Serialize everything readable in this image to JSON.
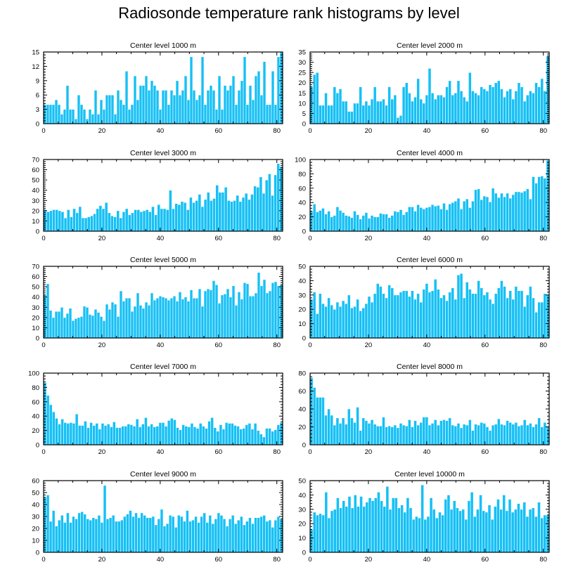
{
  "title": "Radiosonde temperature rank histograms by level",
  "colors": {
    "bar": "#16c0f5",
    "bar_edge": "#ffffff",
    "axis": "#000000"
  },
  "chart_data": [
    {
      "type": "bar",
      "title": "Center level 1000 m",
      "ylim": [
        0,
        15
      ],
      "yticks": [
        0,
        3,
        6,
        9,
        12,
        15
      ],
      "xlim": [
        0,
        82
      ],
      "xticks": [
        0,
        20,
        40,
        60,
        80
      ],
      "values": [
        4,
        4,
        4,
        4,
        5,
        4,
        2,
        3,
        8,
        3,
        3,
        1,
        6,
        4,
        3,
        1,
        3,
        2,
        7,
        2,
        5,
        3,
        6,
        6,
        6,
        2,
        7,
        5,
        4,
        11,
        3,
        4,
        10,
        5,
        8,
        8,
        10,
        7,
        9,
        8,
        7,
        3,
        7,
        7,
        4,
        7,
        6,
        9,
        6,
        7,
        10,
        5,
        14,
        7,
        5,
        6,
        14,
        4,
        7,
        8,
        7,
        3,
        10,
        3,
        8,
        7,
        8,
        10,
        4,
        7,
        9,
        14,
        4,
        8,
        5,
        10,
        11,
        6,
        13,
        4,
        4,
        11,
        4,
        14,
        15
      ]
    },
    {
      "type": "bar",
      "title": "Center level 2000 m",
      "ylim": [
        0,
        35
      ],
      "yticks": [
        0,
        5,
        10,
        15,
        20,
        25,
        30,
        35
      ],
      "xlim": [
        0,
        82
      ],
      "xticks": [
        0,
        20,
        40,
        60,
        80
      ],
      "values": [
        18,
        24,
        25,
        9,
        9,
        15,
        9,
        9,
        18,
        15,
        17,
        11,
        11,
        6,
        6,
        10,
        10,
        18,
        9,
        11,
        9,
        12,
        18,
        11,
        11,
        12,
        9,
        18,
        12,
        14,
        3,
        4,
        18,
        20,
        15,
        11,
        13,
        22,
        12,
        10,
        14,
        27,
        15,
        12,
        14,
        14,
        13,
        18,
        21,
        14,
        15,
        21,
        16,
        13,
        11,
        25,
        16,
        15,
        14,
        18,
        17,
        16,
        19,
        18,
        20,
        21,
        17,
        13,
        16,
        17,
        12,
        16,
        20,
        18,
        11,
        14,
        16,
        15,
        20,
        18,
        22,
        16,
        33
      ]
    },
    {
      "type": "bar",
      "title": "Center level 3000 m",
      "ylim": [
        0,
        70
      ],
      "yticks": [
        0,
        10,
        20,
        30,
        40,
        50,
        60,
        70
      ],
      "xlim": [
        0,
        82
      ],
      "xticks": [
        0,
        20,
        40,
        60,
        80
      ],
      "values": [
        21,
        19,
        20,
        21,
        21,
        20,
        19,
        13,
        21,
        14,
        22,
        18,
        24,
        13,
        13,
        14,
        15,
        17,
        22,
        25,
        22,
        28,
        18,
        15,
        14,
        20,
        13,
        19,
        22,
        16,
        18,
        21,
        21,
        19,
        20,
        21,
        19,
        24,
        16,
        26,
        22,
        22,
        21,
        40,
        22,
        27,
        26,
        29,
        28,
        21,
        33,
        28,
        30,
        36,
        24,
        31,
        38,
        30,
        32,
        45,
        38,
        38,
        43,
        30,
        29,
        30,
        35,
        29,
        33,
        37,
        31,
        36,
        44,
        43,
        53,
        37,
        50,
        56,
        35,
        55,
        66,
        63
      ]
    },
    {
      "type": "bar",
      "title": "Center level 4000 m",
      "ylim": [
        0,
        100
      ],
      "yticks": [
        0,
        20,
        40,
        60,
        80,
        100
      ],
      "xlim": [
        0,
        82
      ],
      "xticks": [
        0,
        20,
        40,
        60,
        80
      ],
      "values": [
        28,
        38,
        27,
        29,
        32,
        24,
        28,
        20,
        22,
        34,
        29,
        26,
        22,
        21,
        19,
        28,
        23,
        17,
        22,
        26,
        18,
        22,
        20,
        20,
        25,
        24,
        24,
        19,
        22,
        28,
        27,
        30,
        23,
        27,
        34,
        34,
        28,
        37,
        33,
        31,
        33,
        34,
        37,
        35,
        36,
        31,
        39,
        30,
        38,
        40,
        42,
        46,
        31,
        42,
        45,
        33,
        42,
        58,
        59,
        44,
        49,
        48,
        41,
        60,
        53,
        47,
        53,
        48,
        53,
        46,
        51,
        55,
        55,
        54,
        56,
        59,
        45,
        76,
        67,
        76,
        77,
        74,
        99
      ]
    },
    {
      "type": "bar",
      "title": "Center level 5000 m",
      "ylim": [
        0,
        70
      ],
      "yticks": [
        0,
        10,
        20,
        30,
        40,
        50,
        60,
        70
      ],
      "xlim": [
        0,
        82
      ],
      "xticks": [
        0,
        20,
        40,
        60,
        80
      ],
      "values": [
        42,
        53,
        27,
        20,
        26,
        26,
        30,
        20,
        24,
        29,
        17,
        19,
        20,
        21,
        31,
        30,
        23,
        22,
        28,
        25,
        21,
        17,
        33,
        28,
        35,
        33,
        21,
        46,
        36,
        39,
        39,
        26,
        31,
        44,
        32,
        29,
        35,
        32,
        44,
        37,
        39,
        41,
        40,
        39,
        37,
        39,
        41,
        36,
        45,
        38,
        40,
        36,
        47,
        39,
        39,
        48,
        31,
        46,
        48,
        47,
        56,
        52,
        34,
        42,
        43,
        48,
        40,
        51,
        32,
        45,
        38,
        54,
        53,
        41,
        41,
        44,
        64,
        51,
        57,
        44,
        46,
        54,
        55,
        51,
        52
      ]
    },
    {
      "type": "bar",
      "title": "Center level 6000 m",
      "ylim": [
        0,
        50
      ],
      "yticks": [
        0,
        10,
        20,
        30,
        40,
        50
      ],
      "xlim": [
        0,
        82
      ],
      "xticks": [
        0,
        20,
        40,
        60,
        80
      ],
      "values": [
        27,
        32,
        17,
        31,
        24,
        22,
        28,
        23,
        20,
        25,
        22,
        26,
        24,
        30,
        21,
        22,
        27,
        19,
        21,
        24,
        29,
        25,
        31,
        38,
        36,
        31,
        28,
        37,
        35,
        30,
        30,
        32,
        33,
        33,
        29,
        33,
        27,
        31,
        25,
        34,
        38,
        32,
        33,
        41,
        34,
        28,
        30,
        26,
        32,
        35,
        27,
        44,
        45,
        28,
        39,
        34,
        31,
        31,
        40,
        35,
        30,
        32,
        27,
        24,
        31,
        35,
        40,
        36,
        28,
        33,
        27,
        36,
        33,
        33,
        22,
        30,
        36,
        28,
        18,
        25,
        25,
        31,
        30
      ]
    },
    {
      "type": "bar",
      "title": "Center level 7000 m",
      "ylim": [
        0,
        100
      ],
      "yticks": [
        0,
        20,
        40,
        60,
        80,
        100
      ],
      "xlim": [
        0,
        82
      ],
      "xticks": [
        0,
        20,
        40,
        60,
        80
      ],
      "values": [
        87,
        69,
        56,
        46,
        37,
        29,
        36,
        31,
        30,
        31,
        30,
        43,
        27,
        27,
        33,
        24,
        31,
        27,
        30,
        22,
        30,
        27,
        29,
        25,
        32,
        24,
        24,
        26,
        26,
        29,
        28,
        26,
        36,
        25,
        29,
        38,
        26,
        29,
        25,
        26,
        31,
        31,
        26,
        34,
        37,
        35,
        24,
        21,
        28,
        26,
        25,
        30,
        25,
        23,
        30,
        26,
        23,
        33,
        38,
        24,
        19,
        28,
        22,
        31,
        30,
        30,
        27,
        26,
        22,
        23,
        28,
        30,
        22,
        30,
        20,
        15,
        11,
        23,
        23,
        19,
        21,
        28,
        31
      ]
    },
    {
      "type": "bar",
      "title": "Center level 8000 m",
      "ylim": [
        0,
        80
      ],
      "yticks": [
        0,
        20,
        40,
        60,
        80
      ],
      "xlim": [
        0,
        82
      ],
      "xticks": [
        0,
        20,
        40,
        60,
        80
      ],
      "values": [
        75,
        64,
        53,
        53,
        53,
        33,
        40,
        33,
        22,
        30,
        24,
        30,
        23,
        40,
        30,
        25,
        42,
        16,
        30,
        27,
        24,
        28,
        23,
        21,
        21,
        31,
        20,
        21,
        20,
        22,
        19,
        24,
        22,
        21,
        28,
        20,
        27,
        22,
        25,
        31,
        31,
        22,
        24,
        28,
        22,
        27,
        28,
        27,
        30,
        22,
        21,
        24,
        19,
        23,
        22,
        28,
        16,
        23,
        22,
        25,
        24,
        20,
        16,
        22,
        23,
        29,
        23,
        22,
        27,
        25,
        23,
        25,
        21,
        22,
        28,
        22,
        24,
        20,
        23,
        30,
        20,
        25,
        20
      ]
    },
    {
      "type": "bar",
      "title": "Center level 9000 m",
      "ylim": [
        0,
        60
      ],
      "yticks": [
        0,
        10,
        20,
        30,
        40,
        50,
        60
      ],
      "xlim": [
        0,
        82
      ],
      "xticks": [
        0,
        20,
        40,
        60,
        80
      ],
      "values": [
        46,
        48,
        26,
        35,
        22,
        27,
        31,
        25,
        33,
        25,
        30,
        28,
        33,
        34,
        32,
        28,
        27,
        29,
        28,
        31,
        25,
        56,
        28,
        29,
        31,
        26,
        26,
        27,
        30,
        32,
        35,
        30,
        33,
        29,
        33,
        31,
        29,
        29,
        30,
        23,
        28,
        36,
        22,
        24,
        31,
        30,
        21,
        31,
        30,
        26,
        35,
        26,
        27,
        30,
        25,
        30,
        33,
        25,
        31,
        24,
        28,
        33,
        31,
        28,
        22,
        28,
        31,
        24,
        27,
        30,
        23,
        26,
        29,
        24,
        29,
        29,
        30,
        31,
        26,
        27,
        21,
        27,
        30,
        28
      ]
    },
    {
      "type": "bar",
      "title": "Center level 10000 m",
      "ylim": [
        0,
        50
      ],
      "yticks": [
        0,
        10,
        20,
        30,
        40,
        50
      ],
      "xlim": [
        0,
        82
      ],
      "xticks": [
        0,
        20,
        40,
        60,
        80
      ],
      "values": [
        16,
        28,
        26,
        27,
        26,
        42,
        24,
        29,
        30,
        38,
        31,
        36,
        32,
        39,
        31,
        40,
        32,
        39,
        32,
        35,
        38,
        36,
        38,
        42,
        36,
        32,
        46,
        30,
        38,
        38,
        31,
        33,
        28,
        38,
        31,
        23,
        25,
        24,
        47,
        23,
        25,
        38,
        30,
        24,
        28,
        26,
        37,
        40,
        30,
        36,
        31,
        29,
        30,
        23,
        36,
        42,
        25,
        30,
        40,
        29,
        28,
        33,
        23,
        32,
        37,
        30,
        40,
        29,
        37,
        28,
        30,
        34,
        30,
        35,
        25,
        30,
        31,
        25,
        35,
        24,
        26,
        26
      ]
    }
  ]
}
